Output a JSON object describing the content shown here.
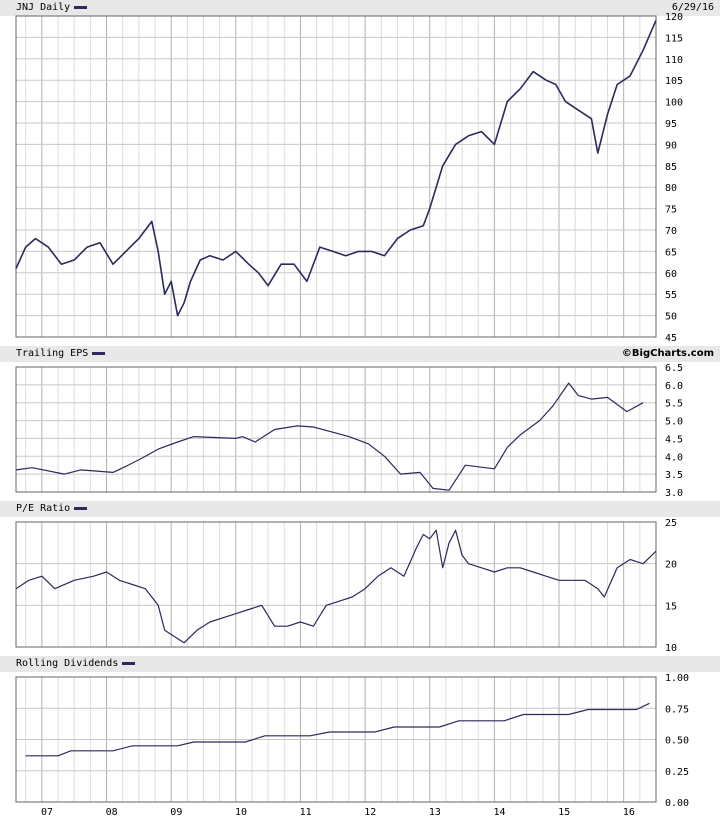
{
  "panels": {
    "price": {
      "label": "JNJ Daily",
      "date": "6/29/16"
    },
    "eps": {
      "label": "Trailing EPS",
      "brand": "©BigCharts.com"
    },
    "pe": {
      "label": "P/E Ratio"
    },
    "div": {
      "label": "Rolling Dividends"
    }
  },
  "colors": {
    "series": "#2a2a5e",
    "grid": "#c8c8c8",
    "header_bg": "#e8e8e8",
    "axis": "#666666"
  },
  "chart_data": [
    {
      "type": "line",
      "title": "JNJ Daily",
      "x_ticks": [
        "07",
        "08",
        "09",
        "10",
        "11",
        "12",
        "13",
        "14",
        "15",
        "16"
      ],
      "xlim": [
        2006.6,
        2016.5
      ],
      "ylim": [
        45,
        120
      ],
      "y_ticks": [
        45,
        50,
        55,
        60,
        65,
        70,
        75,
        80,
        85,
        90,
        95,
        100,
        105,
        110,
        115,
        120
      ],
      "series": [
        {
          "x": [
            2006.6,
            2006.75,
            2006.9,
            2007.1,
            2007.3,
            2007.5,
            2007.7,
            2007.9,
            2008.1,
            2008.3,
            2008.5,
            2008.7,
            2008.8,
            2008.9,
            2009.0,
            2009.1,
            2009.2,
            2009.3,
            2009.45,
            2009.6,
            2009.8,
            2010.0,
            2010.2,
            2010.35,
            2010.5,
            2010.7,
            2010.9,
            2011.1,
            2011.3,
            2011.5,
            2011.7,
            2011.9,
            2012.1,
            2012.3,
            2012.5,
            2012.7,
            2012.9,
            2013.0,
            2013.2,
            2013.4,
            2013.6,
            2013.8,
            2014.0,
            2014.2,
            2014.4,
            2014.6,
            2014.8,
            2014.95,
            2015.1,
            2015.3,
            2015.5,
            2015.6,
            2015.75,
            2015.9,
            2016.1,
            2016.3,
            2016.5
          ],
          "y": [
            61,
            66,
            68,
            66,
            62,
            63,
            66,
            67,
            62,
            65,
            68,
            72,
            65,
            55,
            58,
            50,
            53,
            58,
            63,
            64,
            63,
            65,
            62,
            60,
            57,
            62,
            62,
            58,
            66,
            65,
            64,
            65,
            65,
            64,
            68,
            70,
            71,
            75,
            85,
            90,
            92,
            93,
            90,
            100,
            103,
            107,
            105,
            104,
            100,
            98,
            96,
            88,
            97,
            104,
            106,
            112,
            119
          ]
        }
      ]
    },
    {
      "type": "line",
      "title": "Trailing EPS",
      "xlim": [
        2006.6,
        2016.5
      ],
      "ylim": [
        3.0,
        6.5
      ],
      "y_ticks": [
        3.0,
        3.5,
        4.0,
        4.5,
        5.0,
        5.5,
        6.0,
        6.5
      ],
      "series": [
        {
          "x": [
            2006.6,
            2006.85,
            2007.35,
            2007.6,
            2008.1,
            2008.3,
            2008.55,
            2008.8,
            2009.1,
            2009.35,
            2010.0,
            2010.1,
            2010.3,
            2010.6,
            2010.95,
            2011.2,
            2011.45,
            2011.75,
            2012.05,
            2012.3,
            2012.55,
            2012.85,
            2013.05,
            2013.3,
            2013.55,
            2014.0,
            2014.2,
            2014.4,
            2014.7,
            2014.9,
            2015.15,
            2015.3,
            2015.5,
            2015.75,
            2016.05,
            2016.3
          ],
          "y": [
            3.62,
            3.68,
            3.5,
            3.62,
            3.55,
            3.72,
            3.95,
            4.2,
            4.4,
            4.55,
            4.5,
            4.55,
            4.4,
            4.75,
            4.85,
            4.82,
            4.7,
            4.55,
            4.35,
            4.0,
            3.5,
            3.55,
            3.1,
            3.05,
            3.75,
            3.65,
            4.25,
            4.6,
            5.0,
            5.4,
            6.05,
            5.7,
            5.6,
            5.65,
            5.25,
            5.5
          ]
        }
      ]
    },
    {
      "type": "line",
      "title": "P/E Ratio",
      "xlim": [
        2006.6,
        2016.5
      ],
      "ylim": [
        10,
        25
      ],
      "y_ticks": [
        10,
        15,
        20,
        25
      ],
      "series": [
        {
          "x": [
            2006.6,
            2006.8,
            2007.0,
            2007.2,
            2007.5,
            2007.8,
            2008.0,
            2008.2,
            2008.4,
            2008.6,
            2008.8,
            2008.9,
            2009.0,
            2009.2,
            2009.4,
            2009.6,
            2009.8,
            2010.0,
            2010.2,
            2010.4,
            2010.6,
            2010.8,
            2011.0,
            2011.2,
            2011.4,
            2011.6,
            2011.8,
            2012.0,
            2012.2,
            2012.4,
            2012.6,
            2012.8,
            2012.9,
            2013.0,
            2013.1,
            2013.2,
            2013.3,
            2013.4,
            2013.5,
            2013.6,
            2013.8,
            2014.0,
            2014.2,
            2014.4,
            2014.6,
            2014.8,
            2015.0,
            2015.2,
            2015.4,
            2015.6,
            2015.7,
            2015.9,
            2016.1,
            2016.3,
            2016.5
          ],
          "y": [
            17,
            18,
            18.5,
            17,
            18,
            18.5,
            19,
            18,
            17.5,
            17,
            15,
            12,
            11.5,
            10.5,
            12,
            13,
            13.5,
            14,
            14.5,
            15,
            12.5,
            12.5,
            13,
            12.5,
            15,
            15.5,
            16,
            17,
            18.5,
            19.5,
            18.5,
            22,
            23.5,
            23,
            24,
            19.5,
            22.5,
            24,
            21,
            20,
            19.5,
            19,
            19.5,
            19.5,
            19,
            18.5,
            18,
            18,
            18,
            17,
            16,
            19.5,
            20.5,
            20,
            21.5
          ]
        }
      ]
    },
    {
      "type": "line",
      "title": "Rolling Dividends",
      "x_ticks": [
        "07",
        "08",
        "09",
        "10",
        "11",
        "12",
        "13",
        "14",
        "15",
        "16"
      ],
      "xlim": [
        2006.6,
        2016.5
      ],
      "ylim": [
        0,
        1.0
      ],
      "y_ticks": [
        0.0,
        0.25,
        0.5,
        0.75,
        1.0
      ],
      "series": [
        {
          "x": [
            2006.75,
            2007.25,
            2007.45,
            2008.1,
            2008.4,
            2009.1,
            2009.35,
            2010.15,
            2010.45,
            2011.15,
            2011.45,
            2012.15,
            2012.45,
            2013.15,
            2013.45,
            2014.15,
            2014.45,
            2015.15,
            2015.45,
            2016.2,
            2016.4
          ],
          "y": [
            0.37,
            0.37,
            0.41,
            0.41,
            0.45,
            0.45,
            0.48,
            0.48,
            0.53,
            0.53,
            0.56,
            0.56,
            0.6,
            0.6,
            0.65,
            0.65,
            0.7,
            0.7,
            0.74,
            0.74,
            0.79
          ]
        }
      ]
    }
  ]
}
